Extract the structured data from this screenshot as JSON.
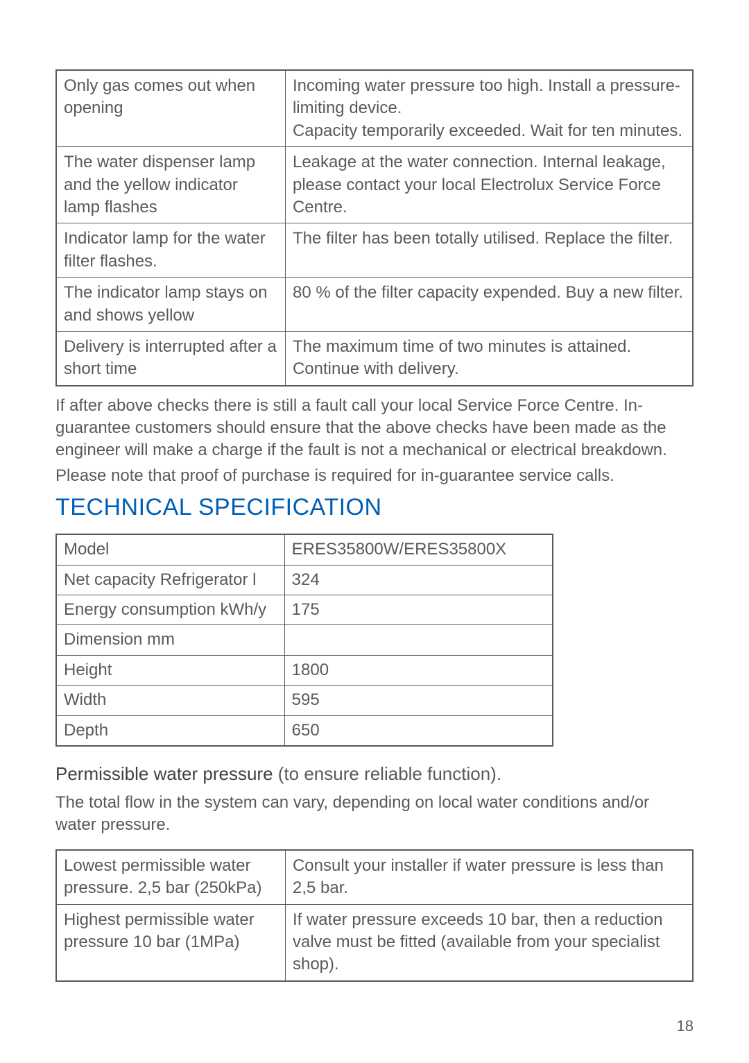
{
  "troubleshooting": {
    "rows": [
      {
        "issue": "Only gas comes out when opening",
        "cause": "Incoming water pressure too high. Install a pressure-limiting device.\nCapacity temporarily exceeded. Wait for ten minutes."
      },
      {
        "issue": "The water dispenser lamp and the yellow indicator lamp flashes",
        "cause": "Leakage at the water connection. Internal leakage, please contact your local Electrolux Service Force Centre."
      },
      {
        "issue": "Indicator lamp for the water filter flashes.",
        "cause": "The filter has been totally utilised. Replace the filter."
      },
      {
        "issue": "The indicator lamp stays on and shows yellow",
        "cause": "80 % of the filter capacity expended. Buy a new filter."
      },
      {
        "issue": "Delivery is interrupted after a short time",
        "cause": "The maximum time of two minutes is attained. Continue with delivery."
      }
    ]
  },
  "after_checks": {
    "p1": "If after above checks there is still a fault call your local Service Force Centre. In-guarantee customers should ensure that the above checks have been made as the engineer will make a charge if the fault is not a mechanical or electrical breakdown.",
    "p2": "Please note that proof of purchase is required for in-guarantee service calls."
  },
  "tech_spec": {
    "heading": "TECHNICAL SPECIFICATION",
    "rows": [
      {
        "label": "Model",
        "value": "ERES35800W/ERES35800X"
      },
      {
        "label": "Net capacity Refrigerator l",
        "value": "324"
      },
      {
        "label": "Energy consumption kWh/y",
        "value": "175"
      },
      {
        "label": "Dimension mm",
        "value": ""
      },
      {
        "label": "Height",
        "value": "1800"
      },
      {
        "label": "Width",
        "value": "595"
      },
      {
        "label": "Depth",
        "value": "650"
      }
    ]
  },
  "pressure": {
    "heading_bold": "Permissible water pressure ",
    "heading_rest": "(to ensure reliable function).",
    "intro": "The total flow in the system can vary, depending on local water conditions and/or water pressure.",
    "rows": [
      {
        "label": "Lowest permissible water pressure. 2,5 bar (250kPa)",
        "value": "Consult your installer if water pressure is less than 2,5 bar."
      },
      {
        "label": "Highest permissible water pressure 10 bar (1MPa)",
        "value": "If water pressure exceeds 10 bar, then a reduction valve must be fitted (available from your specialist shop)."
      }
    ]
  },
  "page_number": "18"
}
